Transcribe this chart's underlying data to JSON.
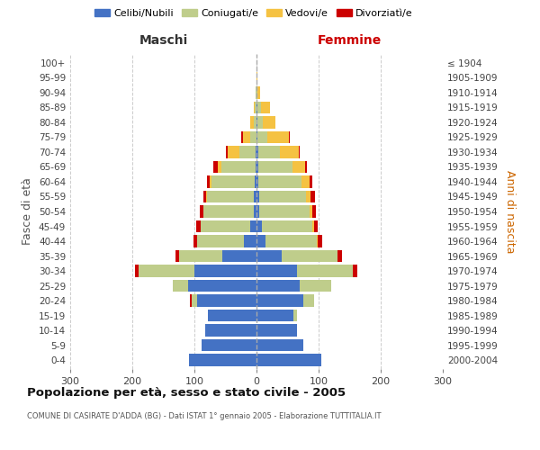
{
  "age_groups": [
    "0-4",
    "5-9",
    "10-14",
    "15-19",
    "20-24",
    "25-29",
    "30-34",
    "35-39",
    "40-44",
    "45-49",
    "50-54",
    "55-59",
    "60-64",
    "65-69",
    "70-74",
    "75-79",
    "80-84",
    "85-89",
    "90-94",
    "95-99",
    "100+"
  ],
  "birth_years": [
    "2000-2004",
    "1995-1999",
    "1990-1994",
    "1985-1989",
    "1980-1984",
    "1975-1979",
    "1970-1974",
    "1965-1969",
    "1960-1964",
    "1955-1959",
    "1950-1954",
    "1945-1949",
    "1940-1944",
    "1935-1939",
    "1930-1934",
    "1925-1929",
    "1920-1924",
    "1915-1919",
    "1910-1914",
    "1905-1909",
    "≤ 1904"
  ],
  "male_celibi": [
    108,
    88,
    82,
    78,
    95,
    110,
    100,
    55,
    20,
    10,
    5,
    4,
    3,
    2,
    2,
    0,
    0,
    0,
    0,
    0,
    0
  ],
  "male_coniugati": [
    0,
    0,
    0,
    0,
    10,
    25,
    90,
    70,
    75,
    80,
    80,
    75,
    70,
    55,
    25,
    10,
    5,
    3,
    1,
    0,
    0
  ],
  "male_vedovi": [
    0,
    0,
    0,
    0,
    0,
    0,
    0,
    0,
    0,
    0,
    1,
    2,
    3,
    5,
    20,
    12,
    5,
    2,
    0,
    0,
    0
  ],
  "male_divorziati": [
    0,
    0,
    0,
    0,
    2,
    0,
    5,
    6,
    7,
    7,
    5,
    5,
    3,
    8,
    2,
    2,
    0,
    0,
    0,
    0,
    0
  ],
  "female_celibi": [
    105,
    75,
    65,
    60,
    75,
    70,
    65,
    40,
    15,
    8,
    5,
    4,
    3,
    3,
    3,
    2,
    2,
    2,
    0,
    0,
    0
  ],
  "female_coniugati": [
    0,
    0,
    0,
    5,
    18,
    50,
    90,
    90,
    82,
    82,
    80,
    75,
    70,
    55,
    35,
    15,
    8,
    5,
    1,
    0,
    0
  ],
  "female_vedovi": [
    0,
    0,
    0,
    0,
    0,
    0,
    0,
    0,
    2,
    3,
    5,
    8,
    12,
    20,
    30,
    35,
    20,
    15,
    5,
    2,
    0
  ],
  "female_divorziati": [
    0,
    0,
    0,
    0,
    0,
    0,
    8,
    8,
    7,
    6,
    5,
    7,
    5,
    3,
    2,
    2,
    0,
    0,
    0,
    0,
    0
  ],
  "color_celibi": "#4472C4",
  "color_coniugati": "#BFCD8B",
  "color_vedovi": "#F5C242",
  "color_divorziati": "#CC0000",
  "title": "Popolazione per età, sesso e stato civile - 2005",
  "subtitle": "COMUNE DI CASIRATE D'ADDA (BG) - Dati ISTAT 1° gennaio 2005 - Elaborazione TUTTITALIA.IT",
  "label_maschi": "Maschi",
  "label_femmine": "Femmine",
  "ylabel_left": "Fasce di età",
  "ylabel_right": "Anni di nascita",
  "xlim": 300,
  "xticks": [
    -300,
    -200,
    -100,
    0,
    100,
    200,
    300
  ],
  "background_color": "#ffffff",
  "grid_color": "#cccccc",
  "legend_labels": [
    "Celibi/Nubili",
    "Coniugati/e",
    "Vedovi/e",
    "Divorziatì/e"
  ]
}
